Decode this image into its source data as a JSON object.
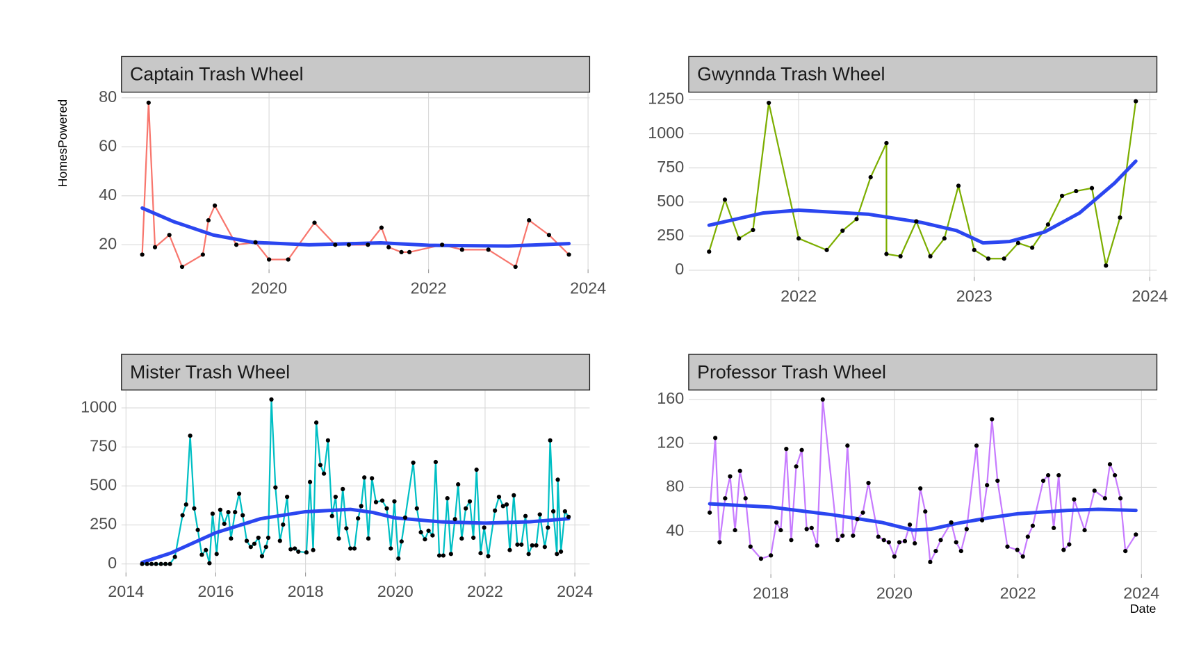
{
  "chart_data": [
    {
      "type": "line",
      "title": "Captain Trash Wheel",
      "ylabel": "HomesPowered",
      "xlim": [
        2018.15,
        2024.02
      ],
      "xticks": [
        2020,
        2022,
        2024
      ],
      "ylim": [
        10,
        82
      ],
      "yticks": [
        20,
        40,
        60,
        80
      ],
      "grid": true,
      "series": [
        {
          "color": "#F8766D",
          "x": [
            2018.41,
            2018.49,
            2018.57,
            2018.75,
            2018.91,
            2019.17,
            2019.24,
            2019.32,
            2019.59,
            2019.83,
            2020.0,
            2020.24,
            2020.57,
            2020.83,
            2021.0,
            2021.24,
            2021.41,
            2021.5,
            2021.66,
            2021.76,
            2022.17,
            2022.42,
            2022.75,
            2023.09,
            2023.26,
            2023.51,
            2023.76
          ],
          "values": [
            16,
            78,
            19,
            24,
            11,
            16,
            30,
            36,
            20,
            21,
            14,
            14,
            29,
            20,
            20,
            20,
            27,
            19,
            17,
            17,
            20,
            18,
            18,
            11,
            30,
            24,
            16
          ]
        },
        {
          "color": "#2B46F0",
          "smooth": true,
          "x": [
            2018.41,
            2018.8,
            2019.3,
            2019.8,
            2020.5,
            2021.4,
            2022.0,
            2023.0,
            2023.76
          ],
          "values": [
            35,
            29.5,
            24,
            21,
            20,
            20.8,
            19.8,
            19.5,
            20.5
          ]
        }
      ]
    },
    {
      "type": "line",
      "title": "Gwynnda Trash Wheel",
      "xlim": [
        2021.374,
        2024.04
      ],
      "xticks": [
        2022,
        2023,
        2024
      ],
      "ylim": [
        -50,
        1300
      ],
      "yticks": [
        0,
        250,
        500,
        750,
        1000,
        1250
      ],
      "grid": true,
      "series": [
        {
          "color": "#7CAE00",
          "x": [
            2021.49,
            2021.58,
            2021.66,
            2021.74,
            2021.83,
            2022.0,
            2022.16,
            2022.25,
            2022.33,
            2022.41,
            2022.5,
            2022.5,
            2022.58,
            2022.67,
            2022.75,
            2022.83,
            2022.91,
            2023.0,
            2023.08,
            2023.17,
            2023.25,
            2023.33,
            2023.42,
            2023.5,
            2023.58,
            2023.67,
            2023.75,
            2023.83,
            2023.92
          ],
          "values": [
            136,
            517,
            233,
            295,
            1227,
            233,
            148,
            290,
            375,
            682,
            932,
            119,
            102,
            358,
            102,
            233,
            619,
            148,
            85,
            85,
            199,
            165,
            335,
            545,
            580,
            602,
            34,
            386,
            1239
          ]
        },
        {
          "color": "#2B46F0",
          "smooth": true,
          "x": [
            2021.49,
            2021.8,
            2022.0,
            2022.4,
            2022.7,
            2022.9,
            2023.05,
            2023.2,
            2023.4,
            2023.6,
            2023.8,
            2023.92
          ],
          "values": [
            330,
            420,
            440,
            410,
            350,
            290,
            200,
            210,
            280,
            420,
            640,
            800
          ]
        }
      ]
    },
    {
      "type": "line",
      "title": "Mister Trash Wheel",
      "xlim": [
        2013.9,
        2024.33
      ],
      "xticks": [
        2014,
        2016,
        2018,
        2020,
        2022,
        2024
      ],
      "ylim": [
        -55,
        1110
      ],
      "yticks": [
        0,
        250,
        500,
        750,
        1000
      ],
      "grid": true,
      "series": [
        {
          "color": "#00BFC4",
          "x": [
            2014.36,
            2014.47,
            2014.57,
            2014.67,
            2014.78,
            2014.88,
            2014.98,
            2015.09,
            2015.26,
            2015.34,
            2015.43,
            2015.52,
            2015.6,
            2015.69,
            2015.78,
            2015.86,
            2015.93,
            2016.02,
            2016.1,
            2016.19,
            2016.28,
            2016.34,
            2016.43,
            2016.52,
            2016.6,
            2016.69,
            2016.78,
            2016.86,
            2016.95,
            2017.03,
            2017.12,
            2017.17,
            2017.24,
            2017.33,
            2017.43,
            2017.5,
            2017.59,
            2017.67,
            2017.76,
            2017.84,
            2018.02,
            2018.1,
            2018.17,
            2018.24,
            2018.33,
            2018.41,
            2018.5,
            2018.59,
            2018.67,
            2018.74,
            2018.83,
            2018.91,
            2019.0,
            2019.09,
            2019.17,
            2019.24,
            2019.31,
            2019.4,
            2019.48,
            2019.57,
            2019.71,
            2019.81,
            2019.9,
            2019.98,
            2020.07,
            2020.14,
            2020.22,
            2020.4,
            2020.48,
            2020.57,
            2020.66,
            2020.74,
            2020.83,
            2020.9,
            2020.98,
            2021.07,
            2021.16,
            2021.24,
            2021.33,
            2021.4,
            2021.48,
            2021.57,
            2021.66,
            2021.74,
            2021.81,
            2021.9,
            2021.98,
            2022.07,
            2022.22,
            2022.31,
            2022.4,
            2022.48,
            2022.55,
            2022.64,
            2022.72,
            2022.81,
            2022.9,
            2022.97,
            2023.05,
            2023.14,
            2023.22,
            2023.33,
            2023.4,
            2023.45,
            2023.52,
            2023.6,
            2023.62,
            2023.69,
            2023.78,
            2023.86
          ],
          "values": [
            0,
            0,
            0,
            0,
            0,
            0,
            0,
            45,
            312,
            381,
            822,
            356,
            218,
            59,
            89,
            5,
            322,
            64,
            347,
            257,
            332,
            163,
            332,
            450,
            312,
            148,
            109,
            129,
            168,
            50,
            109,
            168,
            1054,
            490,
            148,
            252,
            430,
            94,
            99,
            79,
            74,
            525,
            89,
            906,
            634,
            579,
            792,
            307,
            430,
            163,
            480,
            228,
            99,
            99,
            292,
            371,
            554,
            163,
            549,
            396,
            406,
            356,
            99,
            401,
            35,
            144,
            297,
            649,
            356,
            203,
            158,
            213,
            183,
            653,
            54,
            54,
            421,
            64,
            287,
            510,
            163,
            356,
            401,
            168,
            604,
            69,
            233,
            50,
            342,
            430,
            371,
            381,
            89,
            440,
            124,
            124,
            307,
            64,
            119,
            119,
            317,
            109,
            233,
            792,
            337,
            64,
            540,
            79,
            337,
            302
          ]
        },
        {
          "color": "#2B46F0",
          "smooth": true,
          "x": [
            2014.36,
            2015.0,
            2016.0,
            2017.0,
            2018.0,
            2019.0,
            2019.5,
            2020.0,
            2021.0,
            2022.0,
            2023.0,
            2023.86
          ],
          "values": [
            10,
            70,
            200,
            290,
            335,
            350,
            330,
            295,
            270,
            262,
            270,
            290
          ]
        }
      ]
    },
    {
      "type": "line",
      "title": "Professor Trash Wheel",
      "xlabel": "Date",
      "xlim": [
        2016.67,
        2024.25
      ],
      "xticks": [
        2018,
        2020,
        2022,
        2024
      ],
      "ylim": [
        1,
        168
      ],
      "yticks": [
        40,
        80,
        120,
        160
      ],
      "grid": true,
      "series": [
        {
          "color": "#C77CFF",
          "x": [
            2017.01,
            2017.1,
            2017.17,
            2017.26,
            2017.34,
            2017.42,
            2017.5,
            2017.59,
            2017.67,
            2017.84,
            2018.0,
            2018.09,
            2018.16,
            2018.25,
            2018.33,
            2018.41,
            2018.5,
            2018.58,
            2018.66,
            2018.75,
            2018.84,
            2019.08,
            2019.16,
            2019.24,
            2019.33,
            2019.4,
            2019.49,
            2019.58,
            2019.74,
            2019.83,
            2019.91,
            2020.0,
            2020.08,
            2020.17,
            2020.25,
            2020.33,
            2020.42,
            2020.5,
            2020.58,
            2020.67,
            2020.75,
            2020.92,
            2021.0,
            2021.08,
            2021.17,
            2021.33,
            2021.42,
            2021.5,
            2021.58,
            2021.67,
            2021.83,
            2021.99,
            2022.08,
            2022.16,
            2022.24,
            2022.41,
            2022.49,
            2022.58,
            2022.66,
            2022.74,
            2022.83,
            2022.91,
            2023.08,
            2023.24,
            2023.41,
            2023.49,
            2023.57,
            2023.66,
            2023.74,
            2023.91
          ],
          "values": [
            57,
            125,
            30,
            70,
            90,
            41,
            95,
            70,
            26,
            15,
            18,
            48,
            41,
            115,
            32,
            99,
            114,
            42,
            43,
            27,
            160,
            32,
            36,
            118,
            36,
            51,
            57,
            84,
            35,
            32,
            30,
            17,
            30,
            31,
            46,
            29,
            79,
            58,
            12,
            22,
            32,
            48,
            30,
            22,
            42,
            118,
            50,
            82,
            142,
            86,
            26,
            23,
            17,
            35,
            45,
            86,
            91,
            43,
            91,
            23,
            28,
            69,
            41,
            77,
            70,
            101,
            91,
            70,
            22,
            37
          ]
        },
        {
          "color": "#2B46F0",
          "smooth": true,
          "x": [
            2017.01,
            2018.0,
            2019.0,
            2019.8,
            2020.3,
            2020.6,
            2021.0,
            2021.5,
            2022.0,
            2022.8,
            2023.3,
            2023.91
          ],
          "values": [
            65,
            62,
            55,
            48,
            41,
            42,
            47,
            52,
            56,
            59,
            60,
            59
          ]
        }
      ]
    }
  ]
}
